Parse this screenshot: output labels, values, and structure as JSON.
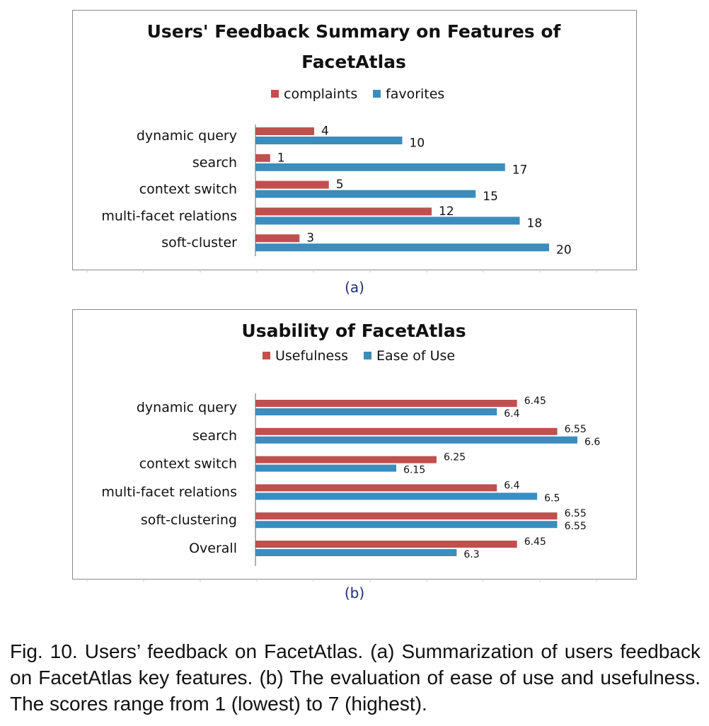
{
  "chart_data": [
    {
      "type": "bar",
      "orientation": "horizontal",
      "title": "Users' Feedback Summary on Features of FacetAtlas",
      "title_lines": [
        "Users' Feedback Summary on Features of",
        "FacetAtlas"
      ],
      "categories": [
        "dynamic query",
        "search",
        "context switch",
        "multi-facet relations",
        "soft-cluster"
      ],
      "series": [
        {
          "name": "complaints",
          "color": "#c0504d",
          "values": [
            4,
            1,
            5,
            12,
            3
          ],
          "labels": [
            "4",
            "1",
            "5",
            "12",
            "3"
          ]
        },
        {
          "name": "favorites",
          "color": "#3b8dbd",
          "values": [
            10,
            17,
            15,
            18,
            20
          ],
          "labels": [
            "10",
            "17",
            "15",
            "18",
            "20"
          ]
        }
      ],
      "xlim": [
        0,
        20
      ],
      "legend": "top",
      "grid": false,
      "xlabel": "",
      "ylabel": ""
    },
    {
      "type": "bar",
      "orientation": "horizontal",
      "title": "Usability of FacetAtlas",
      "title_lines": [
        "Usability of FacetAtlas"
      ],
      "categories": [
        "dynamic query",
        "search",
        "context switch",
        "multi-facet relations",
        "soft-clustering",
        "Overall"
      ],
      "series": [
        {
          "name": "Usefulness",
          "color": "#c0504d",
          "values": [
            6.45,
            6.55,
            6.25,
            6.4,
            6.55,
            6.45
          ],
          "labels": [
            "6.45",
            "6.55",
            "6.25",
            "6.4",
            "6.55",
            "6.45"
          ]
        },
        {
          "name": "Ease of Use",
          "color": "#3b8dbd",
          "values": [
            6.4,
            6.6,
            6.15,
            6.5,
            6.55,
            6.3
          ],
          "labels": [
            "6.4",
            "6.6",
            "6.15",
            "6.5",
            "6.55",
            "6.3"
          ]
        }
      ],
      "xlim": [
        5.8,
        6.6
      ],
      "legend": "top",
      "grid": false,
      "xlabel": "",
      "ylabel": ""
    }
  ],
  "subcaptions": {
    "a": "(a)",
    "b": "(b)"
  },
  "caption": "Fig. 10.  Users’ feedback on FacetAtlas.  (a) Summarization of users feedback on FacetAtlas key features. (b) The evaluation of ease of use and usefulness. The scores range from 1 (lowest) to 7 (highest)."
}
